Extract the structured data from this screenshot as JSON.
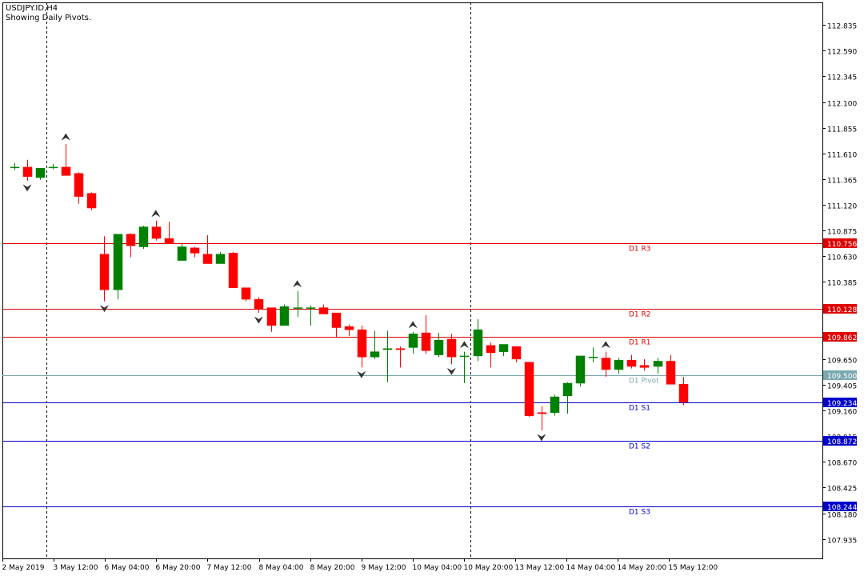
{
  "header": {
    "symbol": "USDJPY.ID,H4",
    "subtitle": "Showing Daily Pivots."
  },
  "chart_data": {
    "type": "candlestick",
    "y_min": 107.75,
    "y_max": 113.05,
    "y_ticks": [
      "112.835",
      "112.590",
      "112.345",
      "112.100",
      "111.855",
      "111.610",
      "111.365",
      "111.120",
      "110.875",
      "110.630",
      "110.385",
      "110.140",
      "109.895",
      "109.650",
      "109.405",
      "109.160",
      "108.915",
      "108.670",
      "108.425",
      "108.180",
      "107.935"
    ],
    "x_labels": [
      "2 May 2019",
      "3 May 12:00",
      "6 May 04:00",
      "6 May 20:00",
      "7 May 12:00",
      "8 May 04:00",
      "8 May 20:00",
      "9 May 12:00",
      "10 May 04:00",
      "10 May 20:00",
      "13 May 12:00",
      "14 May 04:00",
      "14 May 20:00",
      "15 May 12:00"
    ],
    "day_separators": [
      3,
      36
    ],
    "pivots": [
      {
        "label": "D1 R3",
        "value": 110.756,
        "price_label": "110.756",
        "color": "#e00000"
      },
      {
        "label": "D1 R2",
        "value": 110.128,
        "price_label": "110.128",
        "color": "#e00000"
      },
      {
        "label": "D1 R1",
        "value": 109.862,
        "price_label": "109.862",
        "color": "#e00000"
      },
      {
        "label": "D1 Pivot",
        "value": 109.5,
        "price_label": "109.500",
        "color": "#7aa9b0"
      },
      {
        "label": "D1 S1",
        "value": 109.234,
        "price_label": "109.234",
        "color": "#0000cc"
      },
      {
        "label": "D1 S2",
        "value": 108.872,
        "price_label": "108.872",
        "color": "#0000cc"
      },
      {
        "label": "D1 S3",
        "value": 108.244,
        "price_label": "108.244",
        "color": "#0000cc"
      }
    ],
    "candles": [
      {
        "o": 111.48,
        "h": 111.52,
        "l": 111.45,
        "c": 111.48
      },
      {
        "o": 111.48,
        "h": 111.55,
        "l": 111.35,
        "c": 111.39
      },
      {
        "o": 111.38,
        "h": 111.47,
        "l": 111.36,
        "c": 111.47
      },
      {
        "o": 111.48,
        "h": 111.51,
        "l": 111.46,
        "c": 111.48
      },
      {
        "o": 111.48,
        "h": 111.7,
        "l": 111.4,
        "c": 111.4
      },
      {
        "o": 111.42,
        "h": 111.43,
        "l": 111.13,
        "c": 111.2
      },
      {
        "o": 111.23,
        "h": 111.24,
        "l": 111.07,
        "c": 111.09
      },
      {
        "o": 110.65,
        "h": 110.82,
        "l": 110.2,
        "c": 110.31
      },
      {
        "o": 110.31,
        "h": 110.84,
        "l": 110.22,
        "c": 110.84
      },
      {
        "o": 110.84,
        "h": 110.85,
        "l": 110.62,
        "c": 110.73
      },
      {
        "o": 110.72,
        "h": 110.92,
        "l": 110.7,
        "c": 110.91
      },
      {
        "o": 110.91,
        "h": 110.97,
        "l": 110.78,
        "c": 110.8
      },
      {
        "o": 110.8,
        "h": 110.96,
        "l": 110.75,
        "c": 110.75
      },
      {
        "o": 110.59,
        "h": 110.75,
        "l": 110.59,
        "c": 110.72
      },
      {
        "o": 110.71,
        "h": 110.72,
        "l": 110.62,
        "c": 110.66
      },
      {
        "o": 110.65,
        "h": 110.83,
        "l": 110.56,
        "c": 110.56
      },
      {
        "o": 110.56,
        "h": 110.67,
        "l": 110.56,
        "c": 110.65
      },
      {
        "o": 110.66,
        "h": 110.67,
        "l": 110.33,
        "c": 110.33
      },
      {
        "o": 110.33,
        "h": 110.33,
        "l": 110.2,
        "c": 110.22
      },
      {
        "o": 110.22,
        "h": 110.24,
        "l": 110.09,
        "c": 110.13
      },
      {
        "o": 110.14,
        "h": 110.14,
        "l": 109.91,
        "c": 109.97
      },
      {
        "o": 109.97,
        "h": 110.17,
        "l": 109.97,
        "c": 110.15
      },
      {
        "o": 110.14,
        "h": 110.3,
        "l": 110.05,
        "c": 110.14
      },
      {
        "o": 110.14,
        "h": 110.16,
        "l": 109.97,
        "c": 110.14
      },
      {
        "o": 110.14,
        "h": 110.17,
        "l": 110.08,
        "c": 110.08
      },
      {
        "o": 110.09,
        "h": 110.09,
        "l": 109.86,
        "c": 109.95
      },
      {
        "o": 109.96,
        "h": 109.98,
        "l": 109.87,
        "c": 109.93
      },
      {
        "o": 109.93,
        "h": 109.97,
        "l": 109.57,
        "c": 109.67
      },
      {
        "o": 109.67,
        "h": 109.92,
        "l": 109.65,
        "c": 109.72
      },
      {
        "o": 109.74,
        "h": 109.92,
        "l": 109.43,
        "c": 109.75
      },
      {
        "o": 109.75,
        "h": 109.77,
        "l": 109.57,
        "c": 109.74
      },
      {
        "o": 109.76,
        "h": 109.91,
        "l": 109.7,
        "c": 109.89
      },
      {
        "o": 109.9,
        "h": 110.07,
        "l": 109.7,
        "c": 109.73
      },
      {
        "o": 109.69,
        "h": 109.9,
        "l": 109.67,
        "c": 109.83
      },
      {
        "o": 109.84,
        "h": 109.89,
        "l": 109.6,
        "c": 109.67
      },
      {
        "o": 109.68,
        "h": 109.72,
        "l": 109.42,
        "c": 109.68
      },
      {
        "o": 109.68,
        "h": 110.03,
        "l": 109.63,
        "c": 109.93
      },
      {
        "o": 109.78,
        "h": 109.81,
        "l": 109.57,
        "c": 109.71
      },
      {
        "o": 109.72,
        "h": 109.79,
        "l": 109.68,
        "c": 109.79
      },
      {
        "o": 109.77,
        "h": 109.77,
        "l": 109.62,
        "c": 109.65
      },
      {
        "o": 109.62,
        "h": 109.62,
        "l": 109.1,
        "c": 109.11
      },
      {
        "o": 109.14,
        "h": 109.2,
        "l": 108.97,
        "c": 109.13
      },
      {
        "o": 109.14,
        "h": 109.31,
        "l": 109.11,
        "c": 109.29
      },
      {
        "o": 109.3,
        "h": 109.43,
        "l": 109.13,
        "c": 109.42
      },
      {
        "o": 109.42,
        "h": 109.68,
        "l": 109.39,
        "c": 109.68
      },
      {
        "o": 109.67,
        "h": 109.76,
        "l": 109.62,
        "c": 109.67
      },
      {
        "o": 109.66,
        "h": 109.72,
        "l": 109.48,
        "c": 109.55
      },
      {
        "o": 109.55,
        "h": 109.66,
        "l": 109.51,
        "c": 109.64
      },
      {
        "o": 109.64,
        "h": 109.69,
        "l": 109.56,
        "c": 109.58
      },
      {
        "o": 109.59,
        "h": 109.65,
        "l": 109.54,
        "c": 109.57
      },
      {
        "o": 109.58,
        "h": 109.66,
        "l": 109.51,
        "c": 109.63
      },
      {
        "o": 109.63,
        "h": 109.69,
        "l": 109.42,
        "c": 109.41
      },
      {
        "o": 109.41,
        "h": 109.48,
        "l": 109.21,
        "c": 109.24
      }
    ],
    "fractals_up": [
      4,
      11,
      22,
      31,
      35,
      46
    ],
    "fractals_down": [
      1,
      7,
      19,
      27,
      34,
      41
    ]
  }
}
